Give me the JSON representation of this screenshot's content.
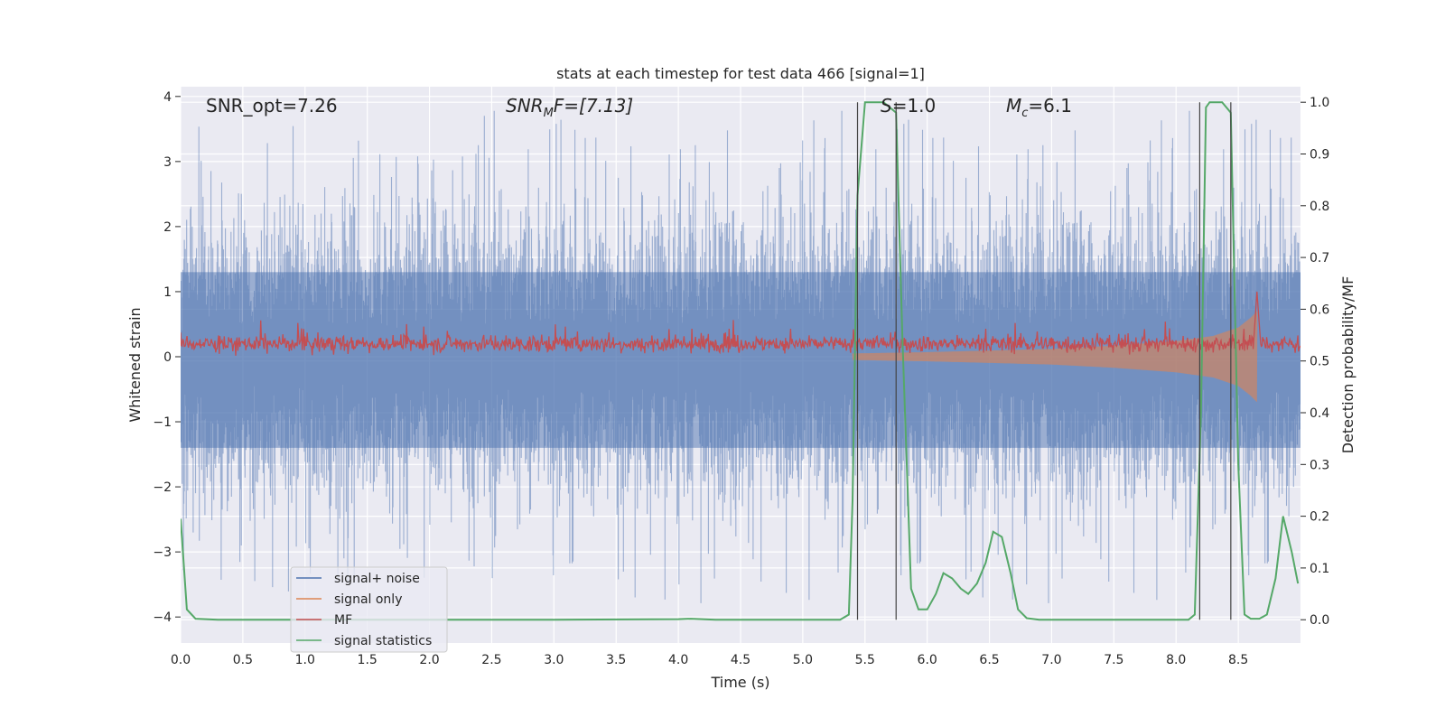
{
  "chart_data": {
    "type": "line",
    "title": "stats at each timestep for test data 466 [signal=1]",
    "xlabel": "Time (s)",
    "ylabel": "Whitened strain",
    "y2label": "Detection probability/MF",
    "xlim": [
      0.0,
      9.0
    ],
    "ylim": [
      -4.4,
      4.15
    ],
    "y2lim": [
      -0.045,
      1.03
    ],
    "xticks": [
      "0.0",
      "0.5",
      "1.0",
      "1.5",
      "2.0",
      "2.5",
      "3.0",
      "3.5",
      "4.0",
      "4.5",
      "5.0",
      "5.5",
      "6.0",
      "6.5",
      "7.0",
      "7.5",
      "8.0",
      "8.5"
    ],
    "yticks": [
      "4",
      "3",
      "2",
      "1",
      "0",
      "−1",
      "−2",
      "−3",
      "−4"
    ],
    "y2ticks": [
      "1.0",
      "0.9",
      "0.8",
      "0.7",
      "0.6",
      "0.5",
      "0.4",
      "0.3",
      "0.2",
      "0.1",
      "0.0"
    ],
    "grid": true,
    "legend_position": "lower-left",
    "annotations": {
      "snr_opt": "SNR_opt=7.26",
      "snr_mf_prefix": "SNR",
      "snr_mf_sub": "M",
      "snr_mf_suffix": "F=[7.13]",
      "s_var": "S",
      "s_value": "=1.0",
      "mc_var": "M",
      "mc_sub": "c",
      "mc_value": "=6.1"
    },
    "vertical_lines_x": [
      5.44,
      5.75,
      8.19,
      8.44
    ],
    "series": [
      {
        "name": "signal+ noise",
        "color": "#4c72b0",
        "axis": "left",
        "description": "whitened noisy strain, amplitude envelope roughly ±2 to ±3 with spikes up to ~3.8",
        "envelope_typical": 2.2,
        "envelope_max": 3.8
      },
      {
        "name": "signal only",
        "color": "#dd8452",
        "axis": "left",
        "description": "chirp signal growing in amplitude until merger near t=8.65 s",
        "envelope_points": [
          [
            5.4,
            0.05
          ],
          [
            6.0,
            0.07
          ],
          [
            7.0,
            0.12
          ],
          [
            7.5,
            0.17
          ],
          [
            8.0,
            0.24
          ],
          [
            8.3,
            0.32
          ],
          [
            8.5,
            0.45
          ],
          [
            8.6,
            0.6
          ],
          [
            8.65,
            0.7
          ]
        ]
      },
      {
        "name": "MF",
        "color": "#c44e52",
        "axis": "left",
        "description": "matched-filter output, noisy band around 0.2 with peak ~1.0 at t=8.65 s",
        "baseline": 0.2,
        "peak": [
          8.65,
          1.0
        ]
      },
      {
        "name": "signal statistics",
        "color": "#55a868",
        "axis": "right",
        "points": [
          [
            0.0,
            0.195
          ],
          [
            0.05,
            0.02
          ],
          [
            0.12,
            0.002
          ],
          [
            0.3,
            0.0
          ],
          [
            1.0,
            0.0
          ],
          [
            2.0,
            0.0
          ],
          [
            3.0,
            0.0
          ],
          [
            4.0,
            0.001
          ],
          [
            4.1,
            0.002
          ],
          [
            4.3,
            0.0
          ],
          [
            5.0,
            0.0
          ],
          [
            5.3,
            0.0
          ],
          [
            5.37,
            0.01
          ],
          [
            5.4,
            0.23
          ],
          [
            5.44,
            0.82
          ],
          [
            5.5,
            1.0
          ],
          [
            5.65,
            1.0
          ],
          [
            5.75,
            0.98
          ],
          [
            5.8,
            0.55
          ],
          [
            5.87,
            0.06
          ],
          [
            5.93,
            0.02
          ],
          [
            6.0,
            0.02
          ],
          [
            6.07,
            0.05
          ],
          [
            6.13,
            0.09
          ],
          [
            6.2,
            0.08
          ],
          [
            6.27,
            0.06
          ],
          [
            6.33,
            0.05
          ],
          [
            6.4,
            0.07
          ],
          [
            6.47,
            0.11
          ],
          [
            6.53,
            0.17
          ],
          [
            6.6,
            0.16
          ],
          [
            6.67,
            0.09
          ],
          [
            6.73,
            0.02
          ],
          [
            6.8,
            0.003
          ],
          [
            6.9,
            0.0
          ],
          [
            7.0,
            0.0
          ],
          [
            7.5,
            0.0
          ],
          [
            8.0,
            0.0
          ],
          [
            8.1,
            0.0
          ],
          [
            8.15,
            0.01
          ],
          [
            8.2,
            0.4
          ],
          [
            8.24,
            0.99
          ],
          [
            8.27,
            1.0
          ],
          [
            8.37,
            1.0
          ],
          [
            8.44,
            0.98
          ],
          [
            8.5,
            0.3
          ],
          [
            8.55,
            0.01
          ],
          [
            8.6,
            0.002
          ],
          [
            8.67,
            0.002
          ],
          [
            8.73,
            0.01
          ],
          [
            8.8,
            0.08
          ],
          [
            8.86,
            0.2
          ],
          [
            8.93,
            0.13
          ],
          [
            8.98,
            0.07
          ]
        ]
      }
    ]
  }
}
